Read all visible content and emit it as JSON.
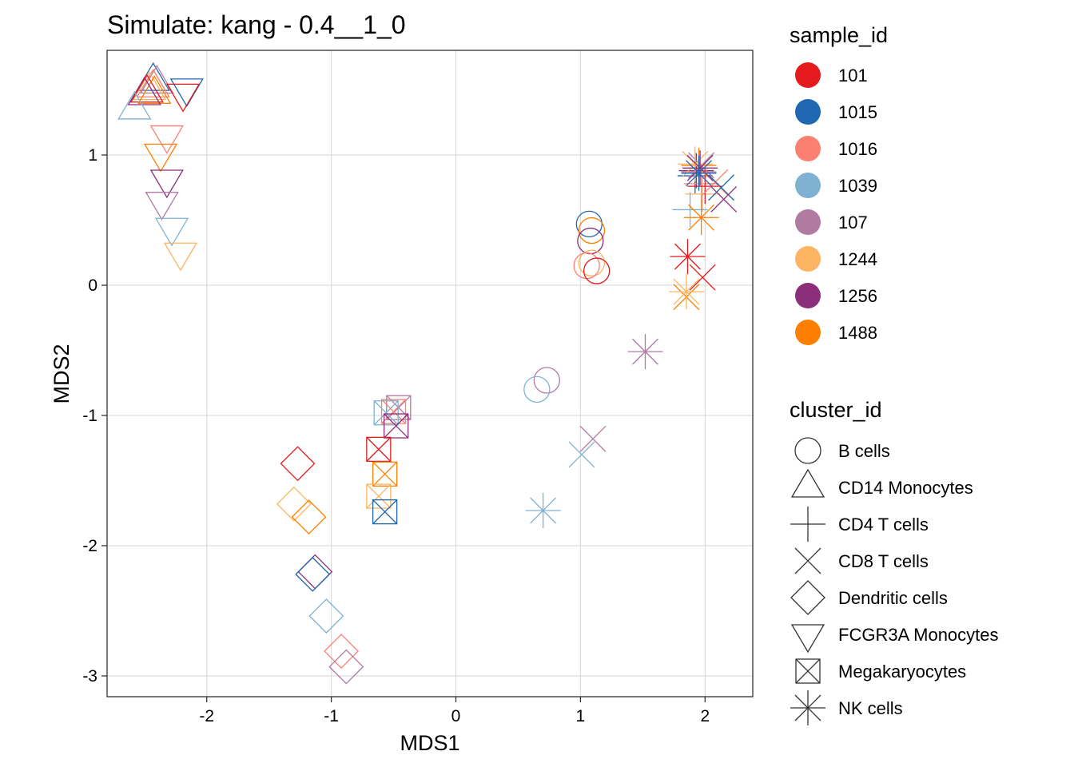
{
  "chart_data": {
    "type": "scatter",
    "title": "Simulate: kang - 0.4__1_0",
    "xlabel": "MDS1",
    "ylabel": "MDS2",
    "xlim": [
      -2.8,
      3.8
    ],
    "ylim": [
      -3.2,
      1.8
    ],
    "xticks": [
      -2,
      -1,
      0,
      1,
      2
    ],
    "xtick_labels": [
      "-2",
      "-1",
      "0",
      "1",
      "2"
    ],
    "yticks": [
      -3,
      -2,
      -1,
      0,
      1
    ],
    "ytick_labels": [
      "-3",
      "-2",
      "-1",
      "0",
      "1"
    ],
    "grid": true,
    "legend_placement": "right",
    "color_legend": {
      "title": "sample_id",
      "entries": [
        {
          "label": "101",
          "color": "#E41A1C"
        },
        {
          "label": "1015",
          "color": "#1F67B1"
        },
        {
          "label": "1016",
          "color": "#FB8072"
        },
        {
          "label": "1039",
          "color": "#80B1D3"
        },
        {
          "label": "107",
          "color": "#B07AA1"
        },
        {
          "label": "1244",
          "color": "#FDB462"
        },
        {
          "label": "1256",
          "color": "#8B2F7A"
        },
        {
          "label": "1488",
          "color": "#FF7F00"
        }
      ]
    },
    "shape_legend": {
      "title": "cluster_id",
      "entries": [
        {
          "label": "B cells",
          "shape": "circle"
        },
        {
          "label": "CD14 Monocytes",
          "shape": "triangle-up"
        },
        {
          "label": "CD4 T cells",
          "shape": "plus"
        },
        {
          "label": "CD8 T cells",
          "shape": "cross"
        },
        {
          "label": "Dendritic cells",
          "shape": "diamond"
        },
        {
          "label": "FCGR3A Monocytes",
          "shape": "triangle-down"
        },
        {
          "label": "Megakaryocytes",
          "shape": "square-cross"
        },
        {
          "label": "NK cells",
          "shape": "asterisk"
        }
      ]
    },
    "points": [
      {
        "x": 1.07,
        "y": 0.47,
        "sample": "1015",
        "cluster": "B cells"
      },
      {
        "x": 1.09,
        "y": 0.42,
        "sample": "1488",
        "cluster": "B cells"
      },
      {
        "x": 1.08,
        "y": 0.34,
        "sample": "1256",
        "cluster": "B cells"
      },
      {
        "x": 1.09,
        "y": 0.17,
        "sample": "1244",
        "cluster": "B cells"
      },
      {
        "x": 1.05,
        "y": 0.15,
        "sample": "1016",
        "cluster": "B cells"
      },
      {
        "x": 1.13,
        "y": 0.11,
        "sample": "101",
        "cluster": "B cells"
      },
      {
        "x": 0.73,
        "y": -0.73,
        "sample": "107",
        "cluster": "B cells"
      },
      {
        "x": 0.65,
        "y": -0.8,
        "sample": "1039",
        "cluster": "B cells"
      },
      {
        "x": -2.43,
        "y": 1.57,
        "sample": "1015",
        "cluster": "CD14 Monocytes"
      },
      {
        "x": -2.4,
        "y": 1.55,
        "sample": "107",
        "cluster": "CD14 Monocytes"
      },
      {
        "x": -2.43,
        "y": 1.52,
        "sample": "1016",
        "cluster": "CD14 Monocytes"
      },
      {
        "x": -2.46,
        "y": 1.5,
        "sample": "1244",
        "cluster": "CD14 Monocytes"
      },
      {
        "x": -2.48,
        "y": 1.48,
        "sample": "101",
        "cluster": "CD14 Monocytes"
      },
      {
        "x": -2.42,
        "y": 1.47,
        "sample": "1488",
        "cluster": "CD14 Monocytes"
      },
      {
        "x": -2.5,
        "y": 1.46,
        "sample": "1256",
        "cluster": "CD14 Monocytes"
      },
      {
        "x": -2.58,
        "y": 1.35,
        "sample": "1039",
        "cluster": "CD14 Monocytes"
      },
      {
        "x": 1.93,
        "y": 0.88,
        "sample": "1256",
        "cluster": "CD4 T cells"
      },
      {
        "x": 1.95,
        "y": 0.92,
        "sample": "1488",
        "cluster": "CD4 T cells"
      },
      {
        "x": 1.92,
        "y": 0.84,
        "sample": "1015",
        "cluster": "CD4 T cells"
      },
      {
        "x": 1.97,
        "y": 0.78,
        "sample": "1016",
        "cluster": "CD4 T cells"
      },
      {
        "x": 1.98,
        "y": 0.7,
        "sample": "1244",
        "cluster": "CD4 T cells"
      },
      {
        "x": 1.88,
        "y": 0.58,
        "sample": "1039",
        "cluster": "CD4 T cells"
      },
      {
        "x": 1.95,
        "y": 0.87,
        "sample": "107",
        "cluster": "CD4 T cells"
      },
      {
        "x": 2.0,
        "y": 0.76,
        "sample": "101",
        "cluster": "CD4 T cells"
      },
      {
        "x": 1.97,
        "y": 0.92,
        "sample": "107",
        "cluster": "CD8 T cells"
      },
      {
        "x": 2.08,
        "y": 0.79,
        "sample": "1016",
        "cluster": "CD8 T cells"
      },
      {
        "x": 2.13,
        "y": 0.75,
        "sample": "1015",
        "cluster": "CD8 T cells"
      },
      {
        "x": 2.15,
        "y": 0.66,
        "sample": "1256",
        "cluster": "CD8 T cells"
      },
      {
        "x": 1.98,
        "y": 0.06,
        "sample": "101",
        "cluster": "CD8 T cells"
      },
      {
        "x": 1.85,
        "y": -0.09,
        "sample": "1488",
        "cluster": "CD8 T cells"
      },
      {
        "x": 1.1,
        "y": -1.18,
        "sample": "107",
        "cluster": "CD8 T cells"
      },
      {
        "x": 1.01,
        "y": -1.3,
        "sample": "1039",
        "cluster": "CD8 T cells"
      },
      {
        "x": -1.27,
        "y": -1.37,
        "sample": "101",
        "cluster": "Dendritic cells"
      },
      {
        "x": -1.3,
        "y": -1.68,
        "sample": "1244",
        "cluster": "Dendritic cells"
      },
      {
        "x": -1.18,
        "y": -1.78,
        "sample": "1488",
        "cluster": "Dendritic cells"
      },
      {
        "x": -1.13,
        "y": -2.2,
        "sample": "1256",
        "cluster": "Dendritic cells"
      },
      {
        "x": -1.15,
        "y": -2.22,
        "sample": "1015",
        "cluster": "Dendritic cells"
      },
      {
        "x": -1.04,
        "y": -2.54,
        "sample": "1039",
        "cluster": "Dendritic cells"
      },
      {
        "x": -0.92,
        "y": -2.81,
        "sample": "1016",
        "cluster": "Dendritic cells"
      },
      {
        "x": -0.88,
        "y": -2.93,
        "sample": "107",
        "cluster": "Dendritic cells"
      },
      {
        "x": -2.16,
        "y": 1.51,
        "sample": "1015",
        "cluster": "FCGR3A Monocytes"
      },
      {
        "x": -2.19,
        "y": 1.47,
        "sample": "101",
        "cluster": "FCGR3A Monocytes"
      },
      {
        "x": -2.32,
        "y": 1.15,
        "sample": "1016",
        "cluster": "FCGR3A Monocytes"
      },
      {
        "x": -2.37,
        "y": 1.01,
        "sample": "1488",
        "cluster": "FCGR3A Monocytes"
      },
      {
        "x": -2.32,
        "y": 0.81,
        "sample": "1256",
        "cluster": "FCGR3A Monocytes"
      },
      {
        "x": -2.36,
        "y": 0.64,
        "sample": "107",
        "cluster": "FCGR3A Monocytes"
      },
      {
        "x": -2.28,
        "y": 0.44,
        "sample": "1039",
        "cluster": "FCGR3A Monocytes"
      },
      {
        "x": -2.21,
        "y": 0.25,
        "sample": "1244",
        "cluster": "FCGR3A Monocytes"
      },
      {
        "x": -0.46,
        "y": -0.94,
        "sample": "107",
        "cluster": "Megakaryocytes"
      },
      {
        "x": -0.5,
        "y": -0.97,
        "sample": "1016",
        "cluster": "Megakaryocytes"
      },
      {
        "x": -0.56,
        "y": -0.98,
        "sample": "1039",
        "cluster": "Megakaryocytes"
      },
      {
        "x": -0.48,
        "y": -1.08,
        "sample": "1256",
        "cluster": "Megakaryocytes"
      },
      {
        "x": -0.62,
        "y": -1.26,
        "sample": "101",
        "cluster": "Megakaryocytes"
      },
      {
        "x": -0.57,
        "y": -1.45,
        "sample": "1488",
        "cluster": "Megakaryocytes"
      },
      {
        "x": -0.62,
        "y": -1.62,
        "sample": "1244",
        "cluster": "Megakaryocytes"
      },
      {
        "x": -0.57,
        "y": -1.74,
        "sample": "1015",
        "cluster": "Megakaryocytes"
      },
      {
        "x": 1.92,
        "y": 0.93,
        "sample": "1244",
        "cluster": "NK cells"
      },
      {
        "x": 1.96,
        "y": 0.9,
        "sample": "1256",
        "cluster": "NK cells"
      },
      {
        "x": 1.95,
        "y": 0.86,
        "sample": "1015",
        "cluster": "NK cells"
      },
      {
        "x": 1.97,
        "y": 0.52,
        "sample": "1488",
        "cluster": "NK cells"
      },
      {
        "x": 1.86,
        "y": 0.22,
        "sample": "101",
        "cluster": "NK cells"
      },
      {
        "x": 1.85,
        "y": -0.05,
        "sample": "1244",
        "cluster": "NK cells"
      },
      {
        "x": 1.52,
        "y": -0.51,
        "sample": "107",
        "cluster": "NK cells"
      },
      {
        "x": 0.7,
        "y": -1.73,
        "sample": "1039",
        "cluster": "NK cells"
      }
    ]
  }
}
